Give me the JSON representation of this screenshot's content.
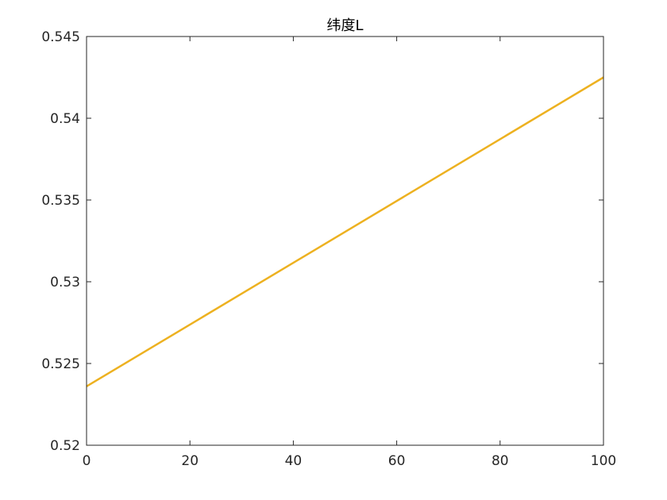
{
  "chart_data": {
    "type": "line",
    "title": "纬度L",
    "xlabel": "",
    "ylabel": "",
    "xlim": [
      0,
      100
    ],
    "ylim": [
      0.52,
      0.545
    ],
    "xticks": [
      0,
      20,
      40,
      60,
      80,
      100
    ],
    "xtick_labels": [
      "0",
      "20",
      "40",
      "60",
      "80",
      "100"
    ],
    "yticks": [
      0.52,
      0.525,
      0.53,
      0.535,
      0.54,
      0.545
    ],
    "ytick_labels": [
      "0.52",
      "0.525",
      "0.53",
      "0.535",
      "0.54",
      "0.545"
    ],
    "grid": false,
    "series": [
      {
        "color": "#EDB120",
        "x": [
          0,
          100
        ],
        "y": [
          0.5236,
          0.5425
        ]
      }
    ]
  }
}
